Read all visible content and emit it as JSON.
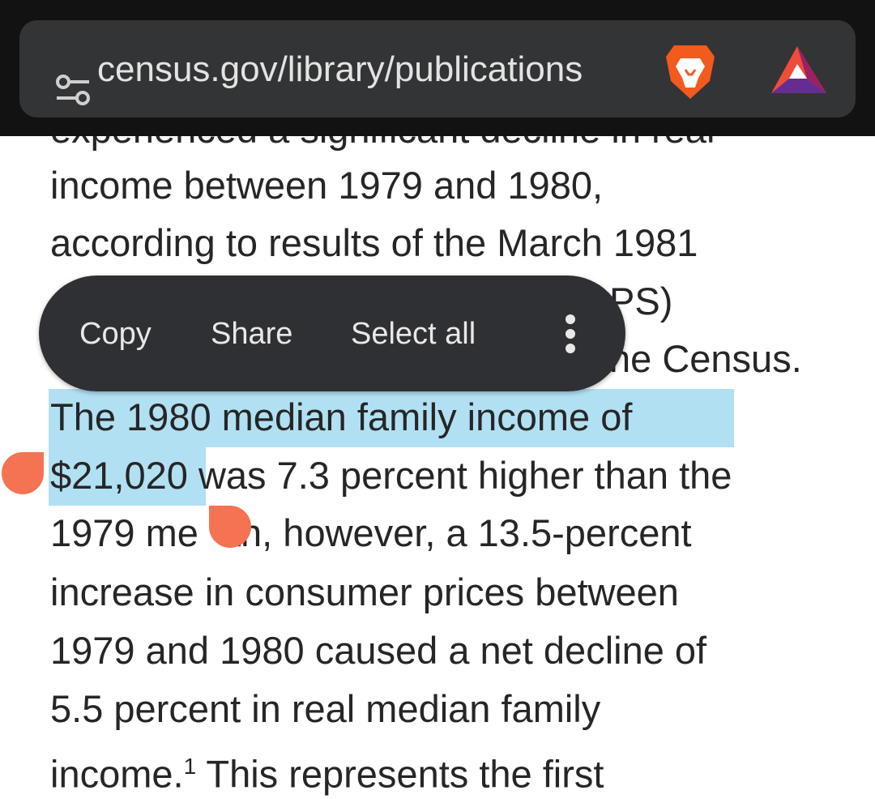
{
  "browser": {
    "url": "census.gov/library/publications",
    "icons": [
      "tune-icon",
      "brave-lion-icon",
      "bat-rewards-icon"
    ]
  },
  "selection_menu": {
    "copy": "Copy",
    "share": "Share",
    "select_all": "Select all",
    "more_icon": "more-vert-icon"
  },
  "article": {
    "line0": "experienced a significant decline in real",
    "line1": "income between 1979 and 1980,",
    "line2": "according to results of the March 1981",
    "line3_visible": "PS)",
    "line4_visible": "ne Census.",
    "line5_selected": "The 1980 median family income of",
    "line6_selected": "$21,020",
    "line6_rest": " was 7.3 percent higher than the",
    "line7_a": "1979 me",
    "line7_b": "an, however, a 13.5-percent",
    "line8": "increase in consumer prices between",
    "line9": "1979 and 1980 caused a net decline of",
    "line10": "5.5 percent in real median family",
    "line11_a": "income.",
    "line11_sup": "1",
    "line11_b": " This represents the first"
  },
  "colors": {
    "selection": "#b1e0f3",
    "handle": "#f47352",
    "menu": "#2f3033"
  }
}
